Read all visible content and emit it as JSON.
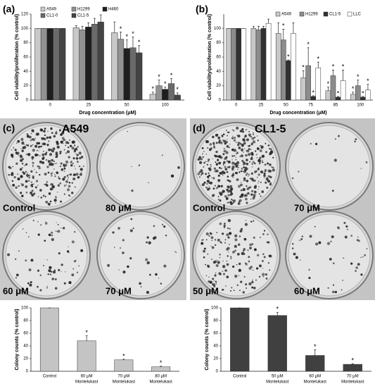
{
  "chart_data": [
    {
      "type": "bar",
      "panel": "(a)",
      "ylabel": "Cell viability/proliferation (% control)",
      "xlabel": "Drug concentration (μM)",
      "categories": [
        "0",
        "25",
        "50",
        "100"
      ],
      "ylim": [
        0,
        120
      ],
      "yticks": [
        0,
        20,
        40,
        60,
        80,
        100,
        120
      ],
      "series": [
        {
          "name": "A549",
          "color": "#c8c8c8",
          "values": [
            100,
            101,
            94,
            8
          ],
          "errors": [
            0,
            3,
            15,
            3
          ],
          "marks": [
            null,
            null,
            null,
            "*"
          ]
        },
        {
          "name": "H1299",
          "color": "#929292",
          "values": [
            100,
            98,
            85,
            20
          ],
          "errors": [
            0,
            5,
            10,
            8
          ],
          "marks": [
            null,
            null,
            "*",
            "*"
          ]
        },
        {
          "name": "H460",
          "color": "#1e1e1e",
          "values": [
            100,
            102,
            72,
            15
          ],
          "errors": [
            0,
            6,
            12,
            3
          ],
          "marks": [
            null,
            null,
            "*",
            "*"
          ]
        },
        {
          "name": "CL1-0",
          "color": "#6a6a6a",
          "values": [
            100,
            106,
            73,
            23
          ],
          "errors": [
            0,
            8,
            15,
            7
          ],
          "marks": [
            null,
            null,
            "*",
            "*"
          ]
        },
        {
          "name": "CL1-5",
          "color": "#444444",
          "values": [
            100,
            109,
            66,
            7
          ],
          "errors": [
            0,
            10,
            10,
            3
          ],
          "marks": [
            null,
            null,
            "*",
            "*"
          ]
        }
      ]
    },
    {
      "type": "bar",
      "panel": "(b)",
      "ylabel": "Cell viability/proliferation (% control)",
      "xlabel": "Drug concentration (μM)",
      "categories": [
        "0",
        "25",
        "50",
        "75",
        "85",
        "100"
      ],
      "ylim": [
        0,
        120
      ],
      "yticks": [
        0,
        20,
        40,
        60,
        80,
        100
      ],
      "series": [
        {
          "name": "A549",
          "color": "#c8c8c8",
          "values": [
            100,
            100,
            93,
            31,
            13,
            8
          ],
          "errors": [
            0,
            3,
            15,
            10,
            5,
            3
          ],
          "marks": [
            null,
            null,
            null,
            "*",
            "*",
            "*"
          ]
        },
        {
          "name": "H1299",
          "color": "#8c8c8c",
          "values": [
            100,
            98,
            84,
            48,
            34,
            20
          ],
          "errors": [
            0,
            5,
            15,
            25,
            8,
            8
          ],
          "marks": [
            null,
            null,
            "*",
            "*",
            "*",
            "*"
          ]
        },
        {
          "name": "CL1-5",
          "color": "#303030",
          "values": [
            100,
            100,
            55,
            5,
            4,
            4
          ],
          "errors": [
            0,
            3,
            1,
            1,
            1,
            1
          ],
          "marks": [
            null,
            null,
            "*",
            "*",
            "*",
            "*"
          ]
        },
        {
          "name": "LLC",
          "color": "#ffffff",
          "values": [
            100,
            107,
            93,
            45,
            27,
            14
          ],
          "errors": [
            0,
            6,
            15,
            8,
            15,
            8
          ],
          "marks": [
            null,
            null,
            null,
            "*",
            "*",
            "*"
          ]
        }
      ]
    },
    {
      "type": "bar",
      "ylabel": "Colony counts (% control)",
      "color": "#c4c4c4",
      "categories": [
        [
          "Control"
        ],
        [
          "60 μM",
          "Montelukast"
        ],
        [
          "70 μM",
          "Montelukast"
        ],
        [
          "80 μM",
          "Montelukast"
        ]
      ],
      "values": [
        100,
        48,
        18,
        7
      ],
      "errors": [
        0,
        8,
        1,
        1
      ],
      "marks": [
        null,
        "*",
        "*",
        "*"
      ],
      "ylim": [
        0,
        100
      ],
      "yticks": [
        0,
        20,
        40,
        60,
        80,
        100
      ]
    },
    {
      "type": "bar",
      "ylabel": "Colony counts (% control)",
      "color": "#404040",
      "categories": [
        [
          "Control"
        ],
        [
          "50 μM",
          "Montelukast"
        ],
        [
          "60 μM",
          "Montelukast"
        ],
        [
          "70 μM",
          "Montelukast"
        ]
      ],
      "values": [
        100,
        88,
        25,
        11
      ],
      "errors": [
        0,
        5,
        9,
        1
      ],
      "marks": [
        null,
        "*",
        "*",
        "*"
      ],
      "ylim": [
        0,
        100
      ],
      "yticks": [
        0,
        20,
        40,
        60,
        80,
        100
      ]
    }
  ],
  "photos": [
    {
      "panel": "(c)",
      "title": "A549",
      "labels": [
        "Control",
        "80 μM",
        "60 μM",
        "70 μM"
      ]
    },
    {
      "panel": "(d)",
      "title": "CL1-5",
      "labels": [
        "Control",
        "70 μM",
        "50 μM",
        "60 μM"
      ]
    }
  ]
}
